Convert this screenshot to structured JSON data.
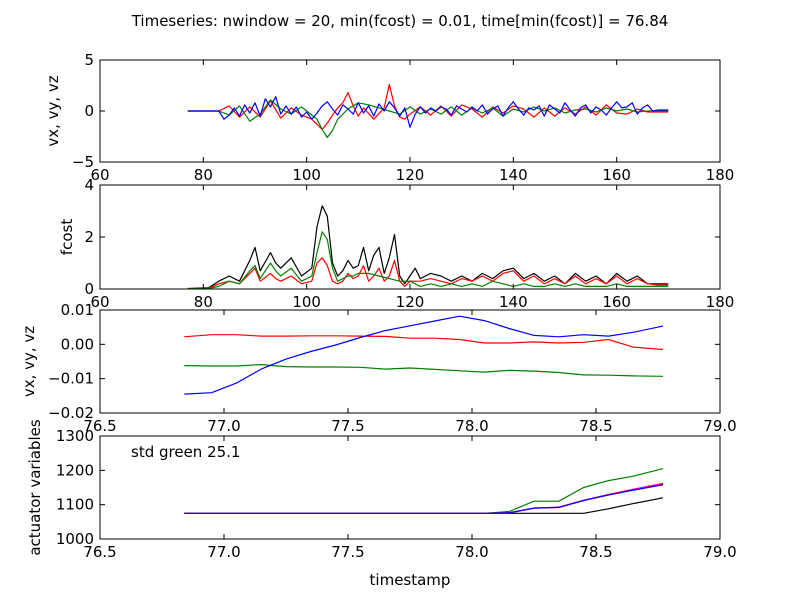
{
  "figure_title": "Timeseries: nwindow = 20, min(fcost) = 0.01, time[min(fcost)] = 76.84",
  "chart_data": [
    {
      "type": "line",
      "ylabel": "vx, vy, vz",
      "xlim": [
        60,
        180
      ],
      "ylim": [
        -5,
        5
      ],
      "xticks": [
        60,
        80,
        100,
        120,
        140,
        160,
        180
      ],
      "yticks": [
        -5,
        0,
        5
      ],
      "grid": false,
      "series": [
        {
          "color": "#ff0000",
          "x": [
            77,
            83,
            85,
            87,
            89,
            91,
            93,
            95,
            97,
            99,
            101,
            103,
            104,
            105,
            106,
            107,
            108,
            109,
            110,
            111,
            113,
            115,
            116,
            117,
            118,
            119,
            120,
            122,
            124,
            126,
            128,
            130,
            132,
            134,
            136,
            138,
            140,
            142,
            144,
            146,
            148,
            150,
            152,
            154,
            156,
            158,
            160,
            162,
            164,
            166,
            168,
            170
          ],
          "y": [
            0,
            0,
            0.5,
            -0.6,
            0.4,
            -0.6,
            1.0,
            -0.7,
            0.3,
            -0.4,
            -0.8,
            -1.8,
            -1.2,
            -0.4,
            0.3,
            0.8,
            1.8,
            0.5,
            -0.5,
            0.3,
            -0.8,
            0.3,
            2.6,
            0.5,
            -0.6,
            -0.8,
            -0.3,
            0.4,
            -0.4,
            0.5,
            -0.5,
            0.6,
            0.2,
            -0.6,
            0.4,
            -0.2,
            0.5,
            0.2,
            -0.6,
            0.3,
            -0.5,
            0.3,
            -0.3,
            0.4,
            -0.4,
            0.6,
            -0.2,
            -0.3,
            0.2,
            -0.1,
            -0.1,
            -0.1
          ]
        },
        {
          "color": "#008000",
          "x": [
            77,
            83,
            85,
            87,
            89,
            91,
            93,
            95,
            97,
            99,
            101,
            102,
            103,
            104,
            105,
            106,
            108,
            110,
            112,
            114,
            116,
            118,
            120,
            122,
            124,
            126,
            128,
            130,
            132,
            134,
            136,
            138,
            140,
            142,
            144,
            146,
            148,
            150,
            152,
            154,
            156,
            158,
            160,
            162,
            164,
            166,
            168,
            170
          ],
          "y": [
            0,
            0,
            -0.4,
            0.5,
            -1.0,
            -0.3,
            1.1,
            0.2,
            -0.3,
            0.4,
            -0.4,
            -0.8,
            -1.8,
            -2.6,
            -1.9,
            -0.8,
            0.2,
            0.8,
            0.6,
            0.3,
            0.0,
            -0.3,
            0.4,
            -0.3,
            0.2,
            -0.3,
            0.4,
            -0.4,
            0.3,
            -0.2,
            0.3,
            -0.5,
            0.2,
            -0.1,
            0.4,
            0.0,
            0.3,
            -0.2,
            0.1,
            0.2,
            -0.1,
            0.3,
            0.0,
            0.2,
            -0.1,
            0.0,
            0.0,
            0.0
          ]
        },
        {
          "color": "#0000ff",
          "x": [
            77,
            83,
            84,
            85,
            86,
            87,
            88,
            89,
            90,
            91,
            92,
            93,
            94,
            95,
            96,
            97,
            98,
            99,
            100,
            101,
            102,
            103,
            104,
            105,
            106,
            107,
            108,
            109,
            110,
            111,
            112,
            113,
            114,
            115,
            116,
            117,
            118,
            119,
            120,
            121,
            122,
            123,
            124,
            125,
            126,
            127,
            128,
            129,
            130,
            131,
            132,
            133,
            134,
            135,
            136,
            137,
            138,
            139,
            140,
            141,
            142,
            143,
            144,
            145,
            146,
            147,
            148,
            149,
            150,
            151,
            152,
            153,
            154,
            155,
            156,
            157,
            158,
            159,
            160,
            161,
            162,
            163,
            164,
            165,
            166,
            167,
            168,
            170
          ],
          "y": [
            0,
            0,
            -0.8,
            -0.4,
            0.3,
            -0.5,
            0.6,
            -0.2,
            0.8,
            -0.5,
            1.2,
            0.4,
            1.4,
            -0.3,
            0.5,
            -0.3,
            0.4,
            -0.6,
            -0.1,
            -0.8,
            -0.2,
            0.5,
            0.9,
            0.2,
            -0.4,
            0.6,
            0.2,
            -0.3,
            0.8,
            -0.2,
            0.5,
            -0.5,
            0.7,
            0.0,
            0.9,
            0.3,
            -0.5,
            0.3,
            -1.6,
            -0.3,
            0.4,
            -0.2,
            0.3,
            0.0,
            0.4,
            0.2,
            -0.4,
            0.5,
            0.2,
            -0.1,
            0.4,
            0.0,
            0.6,
            -0.3,
            0.2,
            0.5,
            -0.5,
            0.3,
            0.9,
            0.2,
            -0.4,
            0.3,
            0.1,
            0.5,
            -0.5,
            0.6,
            0.2,
            -0.2,
            0.8,
            0.1,
            -0.5,
            0.3,
            0.6,
            -0.2,
            0.4,
            0.1,
            -0.4,
            0.3,
            0.9,
            0.3,
            0.4,
            0.8,
            -0.3,
            0.3,
            0.6,
            0.0,
            0.1,
            0.1
          ]
        }
      ]
    },
    {
      "type": "line",
      "ylabel": "fcost",
      "xlim": [
        60,
        180
      ],
      "ylim": [
        0,
        4
      ],
      "xticks": [
        60,
        80,
        100,
        120,
        140,
        160,
        180
      ],
      "yticks": [
        0,
        2,
        4
      ],
      "grid": false,
      "series": [
        {
          "color": "#000000",
          "x": [
            77,
            81,
            83,
            85,
            87,
            89,
            90,
            91,
            93,
            94,
            95,
            97,
            99,
            101,
            102,
            103,
            104,
            105,
            106,
            107,
            108,
            109,
            110,
            111,
            112,
            113,
            114,
            115,
            116,
            117,
            118,
            119,
            120,
            121,
            122,
            124,
            126,
            128,
            130,
            132,
            134,
            136,
            138,
            140,
            142,
            144,
            146,
            148,
            150,
            152,
            154,
            156,
            158,
            160,
            162,
            164,
            166,
            168,
            170
          ],
          "y": [
            0.02,
            0.05,
            0.3,
            0.5,
            0.3,
            1.1,
            1.6,
            0.7,
            1.4,
            1.0,
            0.8,
            1.2,
            0.5,
            0.8,
            2.4,
            3.2,
            2.8,
            1.0,
            0.5,
            0.7,
            1.1,
            0.8,
            0.9,
            1.6,
            0.7,
            1.3,
            1.6,
            0.6,
            1.2,
            2.1,
            0.5,
            0.2,
            0.5,
            0.8,
            0.4,
            0.6,
            0.5,
            0.3,
            0.5,
            0.3,
            0.6,
            0.4,
            0.7,
            0.8,
            0.4,
            0.6,
            0.3,
            0.5,
            0.2,
            0.6,
            0.3,
            0.5,
            0.2,
            0.6,
            0.3,
            0.5,
            0.2,
            0.2,
            0.2
          ]
        },
        {
          "color": "#ff0000",
          "x": [
            77,
            81,
            83,
            85,
            87,
            89,
            90,
            91,
            93,
            94,
            95,
            97,
            99,
            101,
            102,
            103,
            104,
            105,
            106,
            107,
            108,
            109,
            110,
            111,
            112,
            113,
            114,
            115,
            116,
            117,
            118,
            119,
            120,
            122,
            124,
            126,
            128,
            130,
            132,
            134,
            136,
            138,
            140,
            142,
            144,
            146,
            148,
            150,
            152,
            154,
            156,
            158,
            160,
            162,
            164,
            166,
            168,
            170
          ],
          "y": [
            0.01,
            0.03,
            0.2,
            0.3,
            0.2,
            0.6,
            0.8,
            0.3,
            0.6,
            0.4,
            0.3,
            0.5,
            0.2,
            0.3,
            1.0,
            1.2,
            0.9,
            0.3,
            0.2,
            0.3,
            0.6,
            0.4,
            0.5,
            0.9,
            0.3,
            0.5,
            0.8,
            0.3,
            0.5,
            1.1,
            0.3,
            0.1,
            0.3,
            0.3,
            0.4,
            0.3,
            0.2,
            0.4,
            0.3,
            0.5,
            0.3,
            0.6,
            0.7,
            0.3,
            0.5,
            0.2,
            0.4,
            0.2,
            0.5,
            0.2,
            0.4,
            0.2,
            0.5,
            0.2,
            0.4,
            0.2,
            0.15,
            0.15
          ]
        },
        {
          "color": "#008000",
          "x": [
            77,
            81,
            83,
            85,
            87,
            89,
            90,
            91,
            93,
            94,
            95,
            97,
            99,
            101,
            102,
            103,
            104,
            105,
            106,
            107,
            108,
            109,
            110,
            112,
            114,
            116,
            118,
            120,
            122,
            124,
            126,
            128,
            130,
            132,
            134,
            136,
            138,
            140,
            142,
            144,
            146,
            148,
            150,
            152,
            154,
            156,
            158,
            160,
            162,
            164,
            166,
            168,
            170
          ],
          "y": [
            0.01,
            0.02,
            0.1,
            0.3,
            0.2,
            0.7,
            0.9,
            0.4,
            1.0,
            0.7,
            0.5,
            0.8,
            0.3,
            0.5,
            1.4,
            2.2,
            1.9,
            0.8,
            0.3,
            0.4,
            0.5,
            0.5,
            0.6,
            0.6,
            0.5,
            0.4,
            0.3,
            0.3,
            0.1,
            0.2,
            0.1,
            0.2,
            0.1,
            0.2,
            0.1,
            0.3,
            0.2,
            0.1,
            0.2,
            0.1,
            0.1,
            0.2,
            0.1,
            0.2,
            0.1,
            0.1,
            0.1,
            0.2,
            0.1,
            0.1,
            0.1,
            0.1,
            0.1
          ]
        }
      ]
    },
    {
      "type": "line",
      "ylabel": "vx, vy, vz",
      "xlim": [
        76.5,
        79.0
      ],
      "ylim": [
        -0.02,
        0.01
      ],
      "xticks": [
        76.5,
        77.0,
        77.5,
        78.0,
        78.5,
        79.0
      ],
      "yticks": [
        -0.02,
        -0.01,
        0.0,
        0.01
      ],
      "xtick_labels": [
        "76.5",
        "77.0",
        "77.5",
        "78.0",
        "78.5",
        "79.0"
      ],
      "ytick_labels": [
        "−0.02",
        "−0.01",
        "0.00",
        "0.01"
      ],
      "grid": false,
      "series": [
        {
          "color": "#ff0000",
          "x": [
            76.84,
            76.95,
            77.05,
            77.15,
            77.25,
            77.35,
            77.45,
            77.55,
            77.65,
            77.75,
            77.85,
            77.95,
            78.05,
            78.15,
            78.25,
            78.35,
            78.45,
            78.55,
            78.65,
            78.77
          ],
          "y": [
            0.0022,
            0.0028,
            0.0028,
            0.0024,
            0.0024,
            0.0025,
            0.0025,
            0.0024,
            0.0023,
            0.0018,
            0.0018,
            0.0014,
            0.0004,
            0.0004,
            0.0007,
            0.0004,
            0.0006,
            0.0014,
            -0.0008,
            -0.0015
          ]
        },
        {
          "color": "#008000",
          "x": [
            76.84,
            76.95,
            77.05,
            77.15,
            77.25,
            77.35,
            77.45,
            77.55,
            77.65,
            77.75,
            77.85,
            77.95,
            78.05,
            78.15,
            78.25,
            78.35,
            78.45,
            78.55,
            78.65,
            78.77
          ],
          "y": [
            -0.0062,
            -0.0063,
            -0.0063,
            -0.0059,
            -0.0065,
            -0.0066,
            -0.0066,
            -0.0067,
            -0.0072,
            -0.0069,
            -0.0073,
            -0.0077,
            -0.0081,
            -0.0076,
            -0.0078,
            -0.0082,
            -0.0089,
            -0.009,
            -0.0092,
            -0.0093
          ]
        },
        {
          "color": "#0000ff",
          "x": [
            76.84,
            76.95,
            77.05,
            77.15,
            77.25,
            77.35,
            77.45,
            77.55,
            77.65,
            77.75,
            77.85,
            77.95,
            78.05,
            78.15,
            78.25,
            78.35,
            78.45,
            78.55,
            78.65,
            78.77
          ],
          "y": [
            -0.0145,
            -0.0141,
            -0.0113,
            -0.0072,
            -0.0043,
            -0.0021,
            -0.0002,
            0.002,
            0.004,
            0.0054,
            0.0068,
            0.0082,
            0.0069,
            0.0046,
            0.0026,
            0.0022,
            0.0028,
            0.0024,
            0.0035,
            0.0053
          ]
        }
      ]
    },
    {
      "type": "line",
      "ylabel": "actuator variables",
      "xlabel": "timestamp",
      "xlim": [
        76.5,
        79.0
      ],
      "ylim": [
        1000,
        1300
      ],
      "xticks": [
        76.5,
        77.0,
        77.5,
        78.0,
        78.5,
        79.0
      ],
      "yticks": [
        1000,
        1100,
        1200,
        1300
      ],
      "xtick_labels": [
        "76.5",
        "77.0",
        "77.5",
        "78.0",
        "78.5",
        "79.0"
      ],
      "ytick_labels": [
        "1000",
        "1100",
        "1200",
        "1300"
      ],
      "annotation": "std green 25.1",
      "grid": false,
      "series": [
        {
          "color": "#000000",
          "x": [
            76.84,
            78.05,
            78.15,
            78.25,
            78.35,
            78.45,
            78.55,
            78.65,
            78.77
          ],
          "y": [
            1075,
            1075,
            1075,
            1075,
            1075,
            1075,
            1088,
            1103,
            1120
          ]
        },
        {
          "color": "#008000",
          "x": [
            76.84,
            78.05,
            78.15,
            78.25,
            78.35,
            78.45,
            78.55,
            78.65,
            78.77
          ],
          "y": [
            1075,
            1075,
            1080,
            1110,
            1110,
            1150,
            1170,
            1183,
            1205
          ]
        },
        {
          "color": "#ff00ff",
          "x": [
            76.84,
            78.05,
            78.15,
            78.25,
            78.35,
            78.45,
            78.55,
            78.65,
            78.77
          ],
          "y": [
            1075,
            1075,
            1077,
            1090,
            1093,
            1113,
            1130,
            1145,
            1162
          ]
        },
        {
          "color": "#ff0000",
          "x": [
            76.84,
            78.05,
            78.15,
            78.25,
            78.35,
            78.45,
            78.55,
            78.65,
            78.77
          ],
          "y": [
            1075,
            1075,
            1076,
            1090,
            1092,
            1112,
            1129,
            1143,
            1159
          ]
        },
        {
          "color": "#0000ff",
          "x": [
            76.84,
            78.05,
            78.15,
            78.25,
            78.35,
            78.45,
            78.55,
            78.65,
            78.77
          ],
          "y": [
            1075,
            1075,
            1076,
            1090,
            1092,
            1112,
            1128,
            1142,
            1158
          ]
        }
      ]
    }
  ]
}
